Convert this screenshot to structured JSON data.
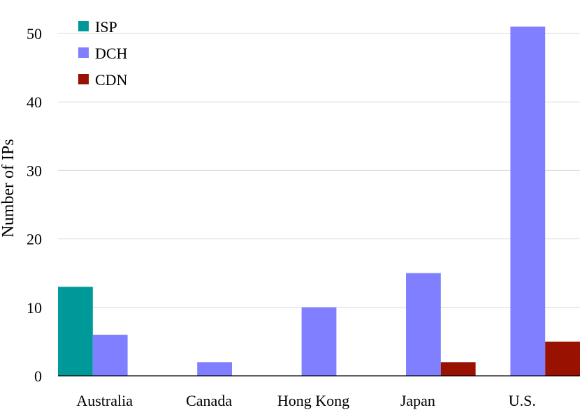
{
  "chart_data": {
    "type": "bar",
    "ylabel": "Number of IPs",
    "xlabel": "",
    "ylim": [
      0,
      55
    ],
    "yticks": [
      0,
      10,
      20,
      30,
      40,
      50
    ],
    "grid": "horizontal",
    "legend_position": "top-left",
    "categories": [
      "Australia",
      "Canada",
      "Hong Kong",
      "Japan",
      "U.S."
    ],
    "series": [
      {
        "name": "ISP",
        "color": "#009999",
        "values": [
          13,
          0,
          0,
          0,
          0
        ]
      },
      {
        "name": "DCH",
        "color": "#7f7fff",
        "values": [
          6,
          2,
          10,
          15,
          51
        ]
      },
      {
        "name": "CDN",
        "color": "#991100",
        "values": [
          0,
          0,
          0,
          2,
          5
        ]
      }
    ]
  }
}
